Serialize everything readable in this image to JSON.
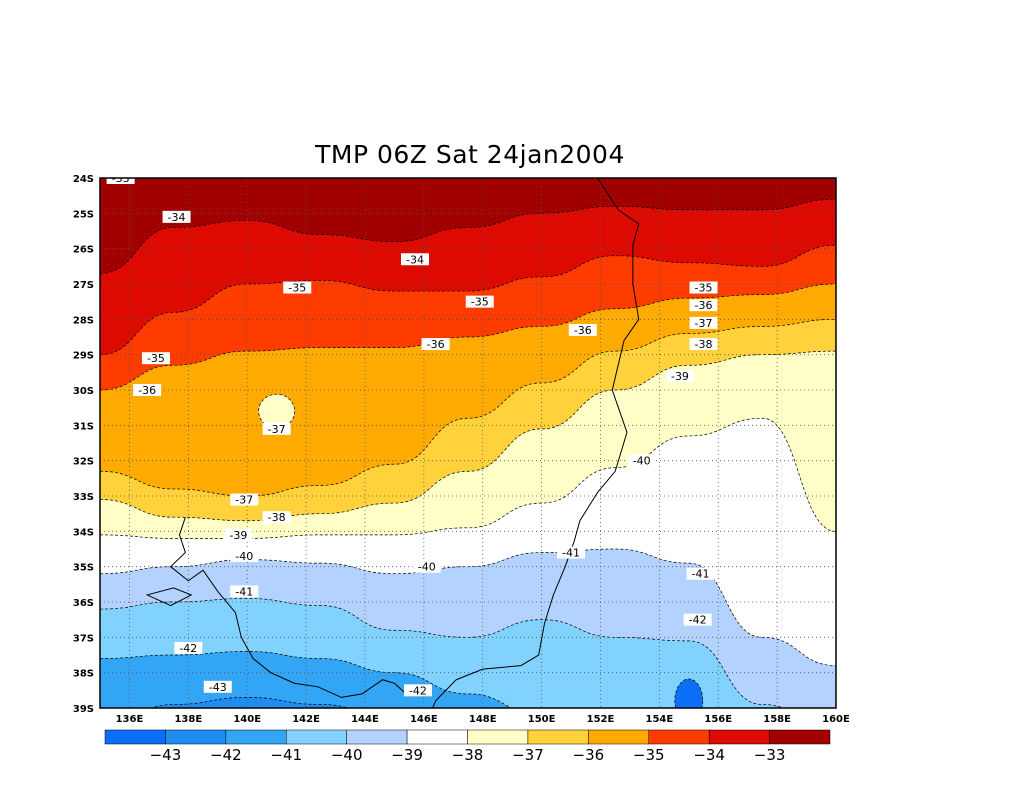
{
  "chart_data": {
    "type": "heatmap",
    "title": "TMP 06Z Sat 24jan2004",
    "variable": "TMP",
    "xlim": [
      135,
      160
    ],
    "ylim": [
      -39,
      -24
    ],
    "x_ticks": [
      "136E",
      "138E",
      "140E",
      "142E",
      "144E",
      "146E",
      "148E",
      "150E",
      "152E",
      "154E",
      "156E",
      "158E",
      "160E"
    ],
    "y_ticks": [
      "24S",
      "25S",
      "26S",
      "27S",
      "28S",
      "29S",
      "30S",
      "31S",
      "32S",
      "33S",
      "34S",
      "35S",
      "36S",
      "37S",
      "38S",
      "39S"
    ],
    "grid": true,
    "colorbar": {
      "labels": [
        "-43",
        "-42",
        "-41",
        "-40",
        "-39",
        "-38",
        "-37",
        "-36",
        "-35",
        "-34",
        "-33"
      ],
      "colors": [
        "#0a6ef6",
        "#1e8cf0",
        "#32a5f5",
        "#82d2ff",
        "#b4d2ff",
        "#ffffff",
        "#ffffc8",
        "#ffd23c",
        "#ffaa00",
        "#ff3c00",
        "#dc0a00",
        "#a00000"
      ]
    },
    "contour_labels": [
      {
        "text": "-33",
        "lon": 135.7,
        "lat": -24.0
      },
      {
        "text": "-34",
        "lon": 137.6,
        "lat": -25.1
      },
      {
        "text": "-34",
        "lon": 145.7,
        "lat": -26.3
      },
      {
        "text": "-35",
        "lon": 141.7,
        "lat": -27.1
      },
      {
        "text": "-35",
        "lon": 147.9,
        "lat": -27.5
      },
      {
        "text": "-35",
        "lon": 155.5,
        "lat": -27.1
      },
      {
        "text": "-36",
        "lon": 155.5,
        "lat": -27.6
      },
      {
        "text": "-37",
        "lon": 155.5,
        "lat": -28.1
      },
      {
        "text": "-38",
        "lon": 155.5,
        "lat": -28.7
      },
      {
        "text": "-39",
        "lon": 154.7,
        "lat": -29.6
      },
      {
        "text": "-35",
        "lon": 136.9,
        "lat": -29.1
      },
      {
        "text": "-36",
        "lon": 136.6,
        "lat": -30.0
      },
      {
        "text": "-36",
        "lon": 146.4,
        "lat": -28.7
      },
      {
        "text": "-36",
        "lon": 151.4,
        "lat": -28.3
      },
      {
        "text": "-37",
        "lon": 141.0,
        "lat": -31.1
      },
      {
        "text": "-37",
        "lon": 139.9,
        "lat": -33.1
      },
      {
        "text": "-38",
        "lon": 141.0,
        "lat": -33.6
      },
      {
        "text": "-39",
        "lon": 139.7,
        "lat": -34.1
      },
      {
        "text": "-40",
        "lon": 139.9,
        "lat": -34.7
      },
      {
        "text": "-40",
        "lon": 146.1,
        "lat": -35.0
      },
      {
        "text": "-40",
        "lon": 153.4,
        "lat": -32.0
      },
      {
        "text": "-41",
        "lon": 151.0,
        "lat": -34.6
      },
      {
        "text": "-41",
        "lon": 139.9,
        "lat": -35.7
      },
      {
        "text": "-41",
        "lon": 155.4,
        "lat": -35.2
      },
      {
        "text": "-42",
        "lon": 155.3,
        "lat": -36.5
      },
      {
        "text": "-42",
        "lon": 138.0,
        "lat": -37.3
      },
      {
        "text": "-42",
        "lon": 145.8,
        "lat": -38.5
      },
      {
        "text": "-43",
        "lon": 139.0,
        "lat": -38.4
      }
    ]
  }
}
